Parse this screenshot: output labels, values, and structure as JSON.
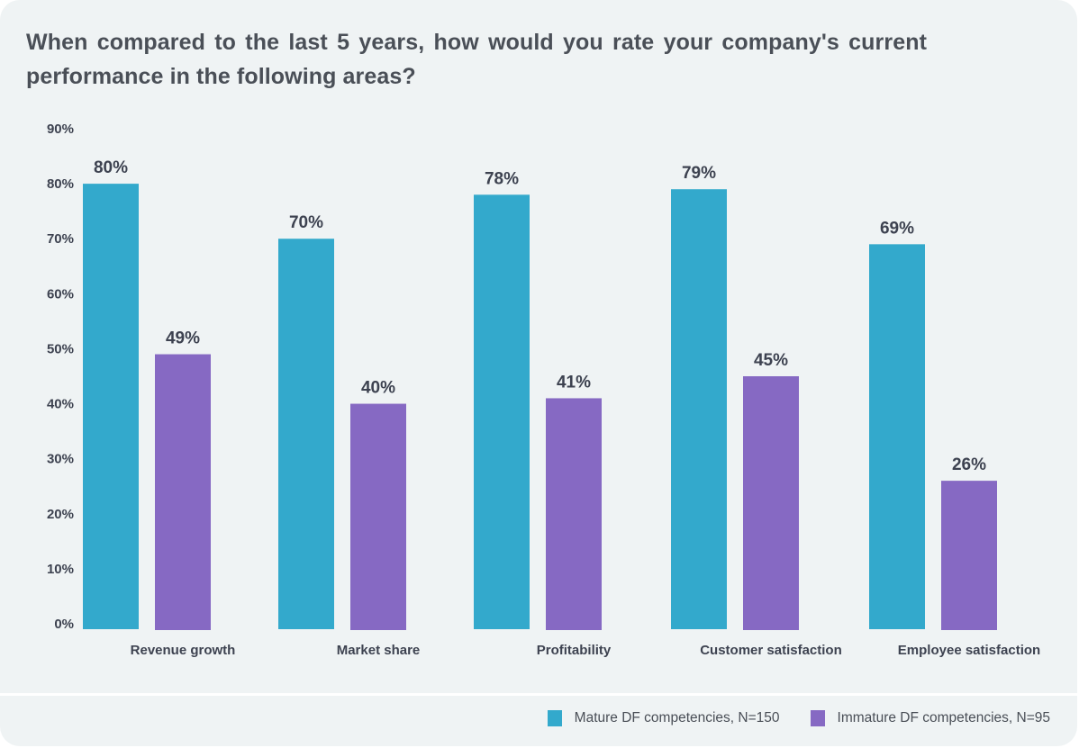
{
  "chart_data": {
    "type": "bar",
    "title": "When compared to the last 5 years, how would you rate your company's current performance in the following areas?",
    "xlabel": "",
    "ylabel": "",
    "ylim": [
      0,
      90
    ],
    "y_ticks": [
      0,
      10,
      20,
      30,
      40,
      50,
      60,
      70,
      80,
      90
    ],
    "y_tick_labels": [
      "0%",
      "10%",
      "20%",
      "30%",
      "40%",
      "50%",
      "60%",
      "70%",
      "80%",
      "90%"
    ],
    "grid": false,
    "legend_position": "bottom-right",
    "categories": [
      "Revenue growth",
      "Market share",
      "Profitability",
      "Customer satisfaction",
      "Employee satisfaction"
    ],
    "series": [
      {
        "name": "Mature DF competencies, N=150",
        "color": "#33a9cc",
        "values": [
          80,
          70,
          78,
          79,
          69
        ],
        "labels": [
          "80%",
          "70%",
          "78%",
          "79%",
          "69%"
        ]
      },
      {
        "name": "Immature DF competencies, N=95",
        "color": "#8669c3",
        "values": [
          49,
          40,
          41,
          45,
          26
        ],
        "labels": [
          "49%",
          "40%",
          "41%",
          "45%",
          "26%"
        ]
      }
    ]
  }
}
